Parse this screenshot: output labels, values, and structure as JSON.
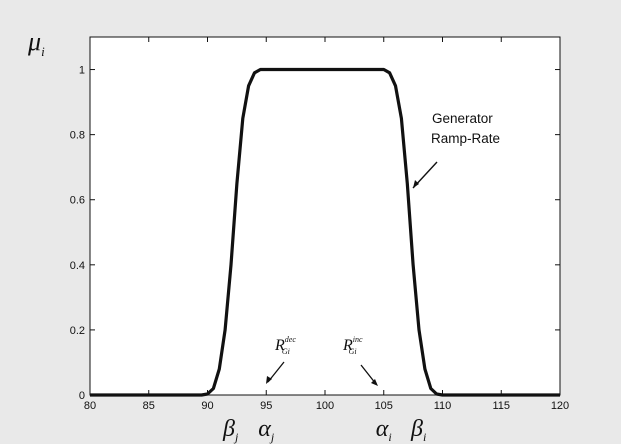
{
  "chart_data": {
    "type": "line",
    "ylabel_symbol": "μ",
    "ylabel_sub": "i",
    "xlim": [
      80,
      120
    ],
    "ylim": [
      0,
      1.1
    ],
    "xticks": [
      80,
      85,
      90,
      95,
      100,
      105,
      110,
      115,
      120
    ],
    "yticks": [
      0,
      0.2,
      0.4,
      0.6,
      0.8,
      1
    ],
    "ytick_labels": [
      "0",
      "0.2",
      "0.4",
      "0.6",
      "0.8",
      "1"
    ],
    "series": [
      {
        "x": [
          80,
          88,
          89.5,
          90,
          90.5,
          91,
          91.5,
          92,
          92.5,
          93,
          93.5,
          94,
          94.5,
          95,
          96,
          100,
          104,
          105,
          105.5,
          106,
          106.5,
          107,
          107.5,
          108,
          108.5,
          109,
          109.5,
          110,
          111,
          120
        ],
        "y": [
          0,
          0,
          0,
          0.003,
          0.02,
          0.08,
          0.2,
          0.4,
          0.65,
          0.85,
          0.95,
          0.99,
          1,
          1,
          1,
          1,
          1,
          1,
          0.99,
          0.95,
          0.85,
          0.65,
          0.4,
          0.2,
          0.08,
          0.02,
          0.003,
          0,
          0,
          0
        ]
      }
    ],
    "annotations": {
      "generator_line1": "Generator",
      "generator_line2": "Ramp-Rate",
      "r_dec_main": "R",
      "r_dec_sub": "Gi",
      "r_dec_sup": "dec",
      "r_inc_main": "R",
      "r_inc_sub": "Gi",
      "r_inc_sup": "inc"
    },
    "below_axis_labels": [
      {
        "sym": "β",
        "sub": "j",
        "x": 92
      },
      {
        "sym": "α",
        "sub": "j",
        "x": 95
      },
      {
        "sym": "α",
        "sub": "i",
        "x": 105
      },
      {
        "sym": "β",
        "sub": "i",
        "x": 108
      }
    ]
  }
}
